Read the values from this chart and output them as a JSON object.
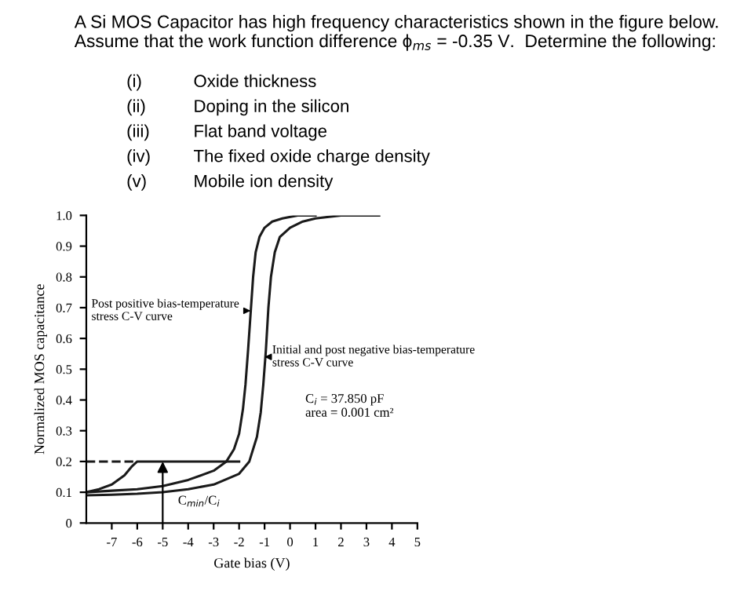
{
  "chart_data": {
    "type": "line",
    "title": "A Si MOS Capacitor has high frequency characteristics shown in the figure below. Assume that the work function difference ϕ$_{ms}$ = -0.35 V.  Determine the following:",
    "xlabel": "Gate bias (V)",
    "ylabel": "Normalized MOS capacitance",
    "xlim": [
      -8,
      5
    ],
    "xticks": [
      -7,
      -6,
      -5,
      -4,
      -3,
      -2,
      -1,
      0,
      1,
      2,
      3,
      4,
      5
    ],
    "ylim": [
      0,
      1
    ],
    "yticks": [
      0,
      0.1,
      0.2,
      0.3,
      0.4,
      0.5,
      0.6,
      0.7,
      0.8,
      0.9,
      {
        "value": 1,
        "label": "1.0"
      }
    ],
    "grid": false,
    "legend": false,
    "marker": "none",
    "series": [
      {
        "color": "#1a1a1a",
        "x": [
          -8,
          -7,
          -6,
          -5,
          -4,
          -3,
          -2.5,
          -2.2,
          -2,
          -1.85,
          -1.75,
          -1.65,
          -1.55,
          -1.45,
          -1.35,
          -1.2,
          -1,
          -0.7,
          -0.3,
          0.3,
          1
        ],
        "values": [
          0.1,
          0.105,
          0.11,
          0.12,
          0.14,
          0.17,
          0.2,
          0.24,
          0.29,
          0.37,
          0.45,
          0.56,
          0.68,
          0.8,
          0.88,
          0.93,
          0.96,
          0.98,
          0.99,
          1.0,
          1.0
        ]
      },
      {
        "color": "#1a1a1a",
        "x": [
          -8,
          -7,
          -6,
          -5,
          -4,
          -3,
          -2,
          -1.6,
          -1.3,
          -1.15,
          -1.05,
          -0.95,
          -0.85,
          -0.75,
          -0.6,
          -0.4,
          0,
          0.5,
          1,
          2,
          3.5
        ],
        "values": [
          0.09,
          0.092,
          0.095,
          0.1,
          0.11,
          0.125,
          0.16,
          0.2,
          0.28,
          0.36,
          0.45,
          0.56,
          0.7,
          0.8,
          0.88,
          0.93,
          0.96,
          0.98,
          0.99,
          1.0,
          1.0
        ]
      },
      {
        "color": "#1a1a1a",
        "x": [
          -8,
          -7.5,
          -7,
          -6.5,
          -6.2,
          -6,
          -2
        ],
        "values": [
          0.1,
          0.11,
          0.125,
          0.155,
          0.185,
          0.2,
          0.2
        ]
      },
      {
        "color": "#1a1a1a",
        "line_style": "dashed",
        "x": [
          -8,
          -6
        ],
        "values": [
          0.2,
          0.2
        ]
      }
    ],
    "annotations": [
      "(i) Oxide thickness",
      "(ii) Doping in the silicon",
      "(iii) Flat band voltage",
      "(iv) The fixed oxide charge density",
      "(v) Mobile ion density",
      {
        "text": "Post positive bias-temperature\nstress C-V curve",
        "x": -1.55,
        "y": 0.69
      },
      {
        "text": "Initial and post negative bias-temperature\nstress C-V curve",
        "x": -1.0,
        "y": 0.54
      },
      "C$_{i}$ = 37.850 pF\narea = 0.001 cm²",
      {
        "text": "C$_{min}$/C$_{i}$",
        "x": -5,
        "y": 0.2
      }
    ]
  }
}
